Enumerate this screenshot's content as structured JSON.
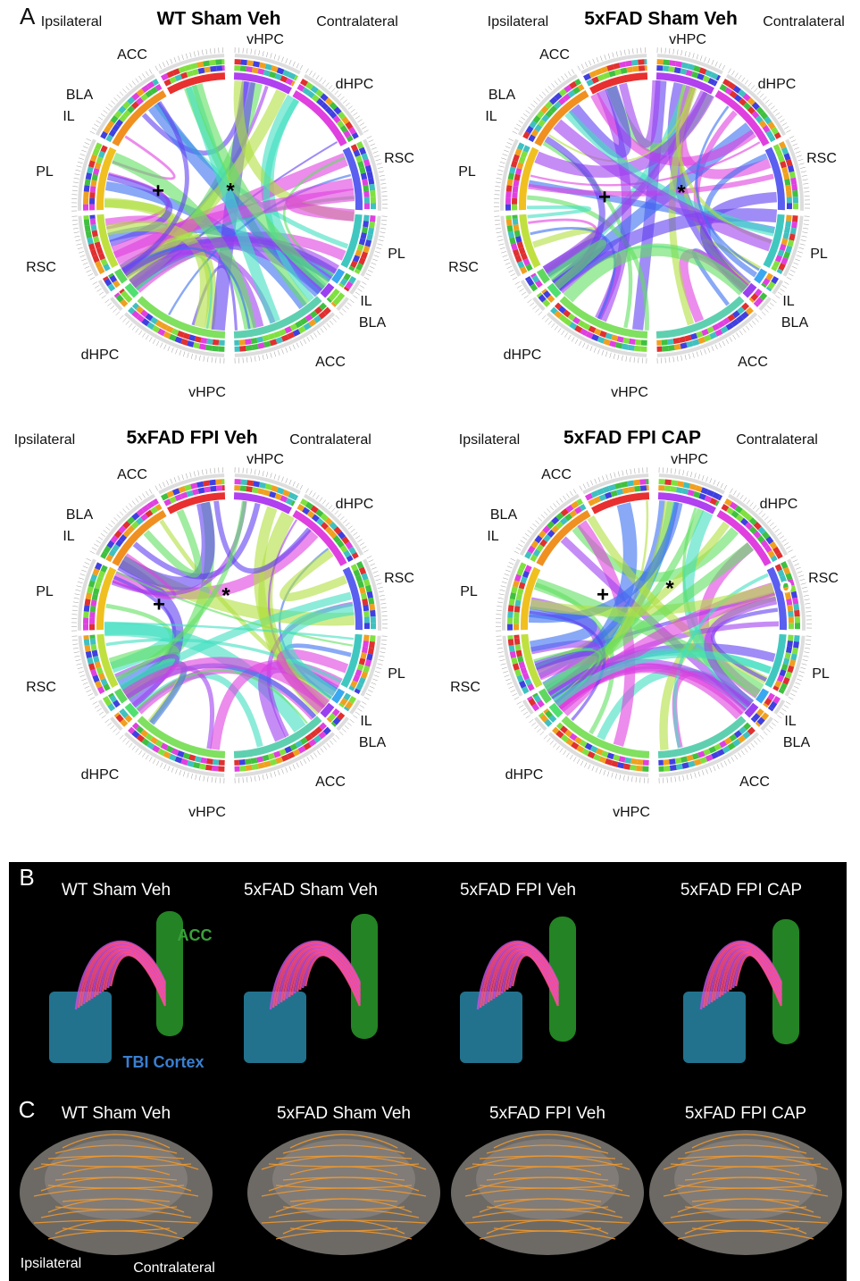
{
  "panel_a": {
    "label": "A",
    "diagrams": [
      {
        "title": "WT Sham Veh",
        "ipsilateral": "Ipsilateral",
        "contralateral": "Contralateral",
        "regions": [
          "ACC",
          "BLA",
          "IL",
          "PL",
          "RSC",
          "dHPC",
          "vHPC",
          "vHPC",
          "dHPC",
          "RSC",
          "PL",
          "IL",
          "BLA",
          "ACC"
        ],
        "markers": [
          "+",
          "*"
        ]
      },
      {
        "title": "5xFAD Sham Veh",
        "ipsilateral": "Ipsilateral",
        "contralateral": "Contralateral",
        "regions": [
          "ACC",
          "BLA",
          "IL",
          "PL",
          "RSC",
          "dHPC",
          "vHPC",
          "vHPC",
          "dHPC",
          "RSC",
          "PL",
          "IL",
          "BLA",
          "ACC"
        ],
        "markers": [
          "+",
          "*"
        ]
      },
      {
        "title": "5xFAD FPI Veh",
        "ipsilateral": "Ipsilateral",
        "contralateral": "Contralateral",
        "regions": [
          "ACC",
          "BLA",
          "IL",
          "PL",
          "RSC",
          "dHPC",
          "vHPC",
          "vHPC",
          "dHPC",
          "RSC",
          "PL",
          "IL",
          "BLA",
          "ACC"
        ],
        "markers": [
          "+",
          "*"
        ]
      },
      {
        "title": "5xFAD FPI CAP",
        "ipsilateral": "Ipsilateral",
        "contralateral": "Contralateral",
        "regions": [
          "ACC",
          "BLA",
          "IL",
          "PL",
          "RSC",
          "dHPC",
          "vHPC",
          "vHPC",
          "dHPC",
          "RSC",
          "PL",
          "IL",
          "BLA",
          "ACC"
        ],
        "markers": [
          "+",
          "*",
          "o"
        ]
      }
    ]
  },
  "panel_b": {
    "label": "B",
    "titles": [
      "WT Sham Veh",
      "5xFAD Sham Veh",
      "5xFAD FPI Veh",
      "5xFAD FPI CAP"
    ],
    "acc_label": "ACC",
    "tbi_label": "TBI Cortex"
  },
  "panel_c": {
    "label": "C",
    "titles": [
      "WT Sham Veh",
      "5xFAD Sham Veh",
      "5xFAD FPI Veh",
      "5xFAD FPI CAP"
    ],
    "ipsilateral": "Ipsilateral",
    "contralateral": "Contralateral"
  }
}
